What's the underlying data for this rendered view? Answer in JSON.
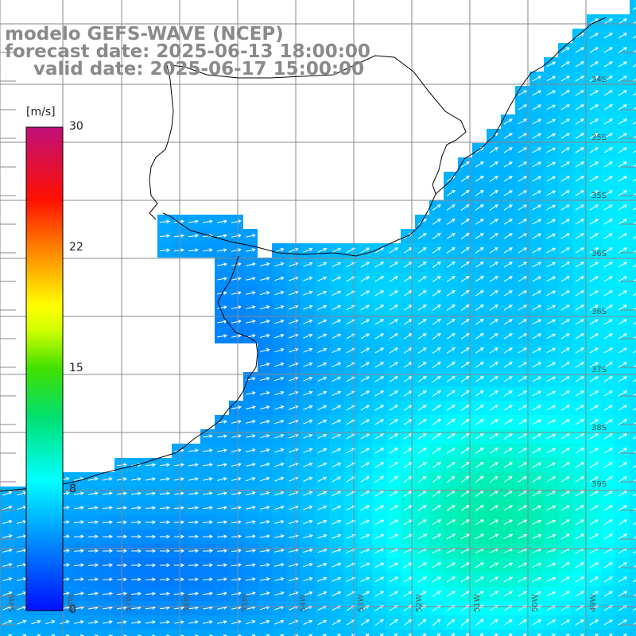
{
  "title": {
    "line1": "modelo GEFS-WAVE (NCEP)",
    "line2": "forecast date: 2025-06-13 18:00:00",
    "line3": "valid date: 2025-06-17 15:00:00"
  },
  "colorbar": {
    "unit": "[m/s]",
    "ticks": [
      "30",
      "22",
      "15",
      "8",
      "0"
    ],
    "tick_values": [
      30,
      22,
      15,
      8,
      0
    ],
    "max": 30,
    "min": 0
  },
  "lat_labels": [
    "34S",
    "35S",
    "35S",
    "36S",
    "36S",
    "37S",
    "38S",
    "39S"
  ],
  "lon_labels": [
    "59W",
    "58W",
    "57W",
    "56W",
    "55W",
    "54W",
    "53W",
    "52W",
    "51W",
    "50W",
    "49W"
  ],
  "colors": {
    "land": "#ffffff",
    "grid": "#999999",
    "coast": "#000000",
    "arrow": "#ffffff"
  },
  "field": {
    "variable": "wind speed",
    "unit": "m/s",
    "approx_range": [
      3,
      12
    ]
  }
}
